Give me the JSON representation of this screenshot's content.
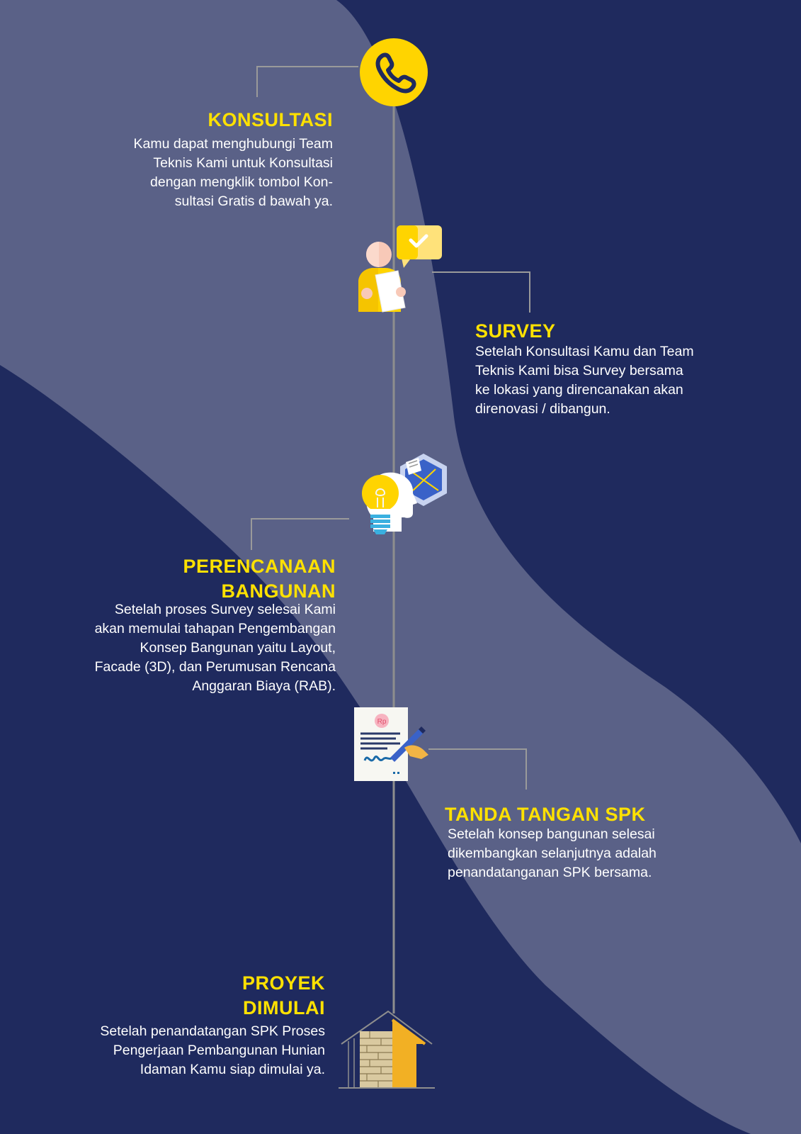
{
  "colors": {
    "background": "#1f2a5e",
    "wave": "#5a6187",
    "timeline": "#8e8e8e",
    "title": "#ffe100",
    "text": "#ffffff",
    "accent_yellow": "#ffd400"
  },
  "steps": [
    {
      "title": "KONSULTASI",
      "icon": "phone-icon",
      "description": "Kamu dapat menghubungi Team\nTeknis Kami untuk Konsultasi\ndengan mengklik tombol Kon-\nsultasi Gratis d bawah ya."
    },
    {
      "title": "SURVEY",
      "icon": "survey-person-icon",
      "description": "Setelah Konsultasi Kamu dan Team\nTeknis Kami bisa Survey bersama\nke lokasi yang direncanakan akan\ndirenovasi / dibangun."
    },
    {
      "title_line1": "PERENCANAAN",
      "title_line2": "BANGUNAN",
      "icon": "idea-planning-icon",
      "description": "Setelah proses Survey selesai Kami\nakan memulai tahapan Pengembangan\nKonsep Bangunan  yaitu Layout,\nFacade (3D), dan Perumusan Rencana\nAnggaran Biaya (RAB)."
    },
    {
      "title": "TANDA TANGAN SPK",
      "icon": "contract-sign-icon",
      "icon_text": "Rp",
      "description": "Setelah konsep bangunan selesai\ndikembangkan selanjutnya adalah\npenandatanganan SPK bersama."
    },
    {
      "title_line1": "PROYEK",
      "title_line2": "DIMULAI",
      "icon": "house-construction-icon",
      "description": "Setelah penandatangan SPK Proses\nPengerjaan Pembangunan Hunian\nIdaman Kamu siap dimulai ya."
    }
  ]
}
